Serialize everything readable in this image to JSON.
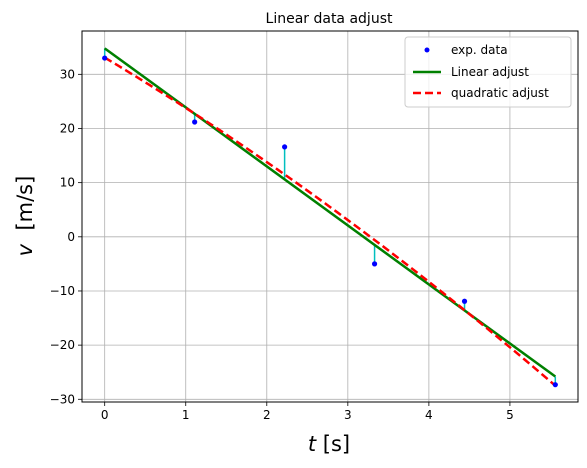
{
  "chart_data": {
    "type": "scatter",
    "title": "Linear data adjust",
    "xlabel_var": "t",
    "xlabel_unit": " [s]",
    "ylabel_var": "v",
    "ylabel_unit": "  [m/s]",
    "xlim": [
      -0.28,
      5.84
    ],
    "ylim": [
      -30.5,
      38
    ],
    "grid": true,
    "legend_position": "top-right",
    "x_ticks": [
      0,
      1,
      2,
      3,
      4,
      5
    ],
    "y_ticks": [
      -30,
      -20,
      -10,
      0,
      10,
      20,
      30
    ],
    "x_tick_labels": [
      "0",
      "1",
      "2",
      "3",
      "4",
      "5"
    ],
    "y_tick_labels": [
      "−30",
      "−20",
      "−10",
      "0",
      "10",
      "20",
      "30"
    ],
    "series": [
      {
        "name": "exp. data",
        "kind": "points",
        "color": "#0000ff",
        "x": [
          0,
          1.11,
          2.22,
          3.33,
          4.44,
          5.56
        ],
        "y": [
          33.0,
          21.2,
          16.6,
          -5.0,
          -11.9,
          -27.3
        ]
      },
      {
        "name": "Linear adjust",
        "kind": "line",
        "style": "solid",
        "color": "#008000",
        "x": [
          0,
          5.56
        ],
        "y": [
          34.8,
          -25.8
        ]
      },
      {
        "name": "quadratic adjust",
        "kind": "line",
        "style": "dashed",
        "color": "#ff0000",
        "quadratic": [
          33.1,
          -8.95,
          -0.35
        ],
        "x_range": [
          0,
          5.56
        ]
      }
    ],
    "residual_color": "#00bfbf"
  }
}
